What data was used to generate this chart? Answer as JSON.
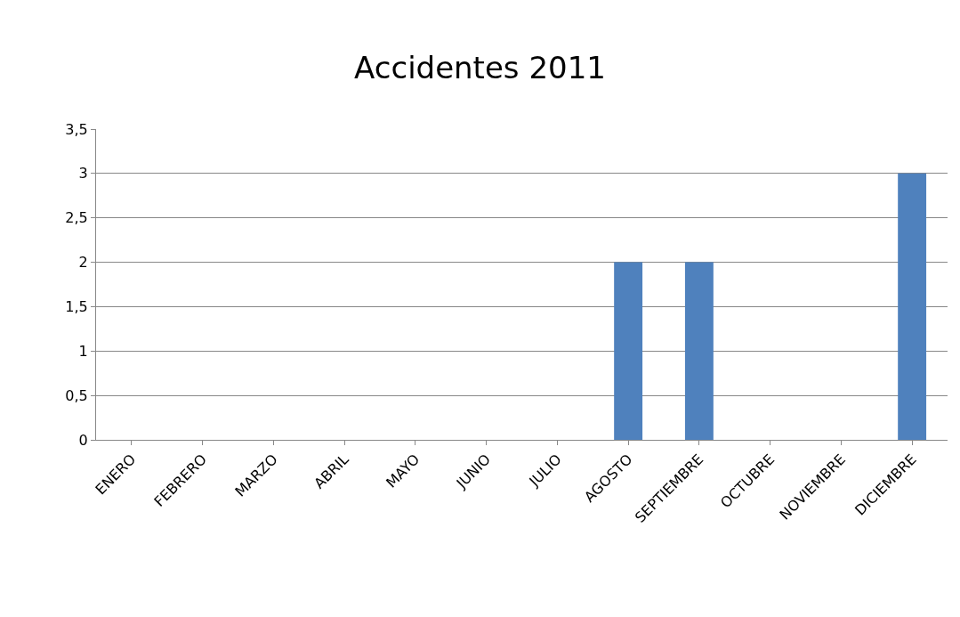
{
  "chart_data": {
    "type": "bar",
    "title": "Accidentes 2011",
    "categories": [
      "ENERO",
      "FEBRERO",
      "MARZO",
      "ABRIL",
      "MAYO",
      "JUNIO",
      "JULIO",
      "AGOSTO",
      "SEPTIEMBRE",
      "OCTUBRE",
      "NOVIEMBRE",
      "DICIEMBRE"
    ],
    "values": [
      0,
      0,
      0,
      0,
      0,
      0,
      0,
      2,
      2,
      0,
      0,
      3
    ],
    "color": "#4f81bd",
    "ylim": [
      0,
      3.5
    ],
    "yticks": [
      0,
      {
        "value": 0.5,
        "label": "0,5"
      },
      1,
      {
        "value": 1.5,
        "label": "1,5"
      },
      2,
      {
        "value": 2.5,
        "label": "2,5"
      },
      3,
      {
        "value": 3.5,
        "label": "3,5"
      }
    ],
    "grid": "y"
  }
}
